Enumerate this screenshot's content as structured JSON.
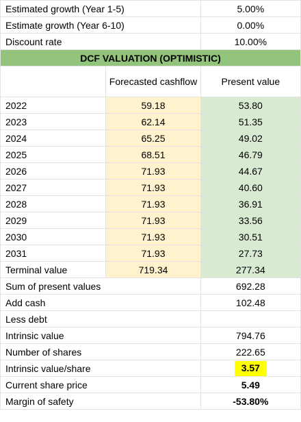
{
  "assumptions": [
    {
      "label": "Estimated growth (Year 1-5)",
      "value": "5.00%"
    },
    {
      "label": "Estimate growth (Year 6-10)",
      "value": "0.00%"
    },
    {
      "label": "Discount rate",
      "value": "10.00%"
    }
  ],
  "banner": "DCF VALUATION (OPTIMISTIC)",
  "headers": {
    "forecasted": "Forecasted cashflow",
    "present_value": "Present value"
  },
  "rows": [
    {
      "year": "2022",
      "cashflow": "59.18",
      "pv": "53.80"
    },
    {
      "year": "2023",
      "cashflow": "62.14",
      "pv": "51.35"
    },
    {
      "year": "2024",
      "cashflow": "65.25",
      "pv": "49.02"
    },
    {
      "year": "2025",
      "cashflow": "68.51",
      "pv": "46.79"
    },
    {
      "year": "2026",
      "cashflow": "71.93",
      "pv": "44.67"
    },
    {
      "year": "2027",
      "cashflow": "71.93",
      "pv": "40.60"
    },
    {
      "year": "2028",
      "cashflow": "71.93",
      "pv": "36.91"
    },
    {
      "year": "2029",
      "cashflow": "71.93",
      "pv": "33.56"
    },
    {
      "year": "2030",
      "cashflow": "71.93",
      "pv": "30.51"
    },
    {
      "year": "2031",
      "cashflow": "71.93",
      "pv": "27.73"
    }
  ],
  "terminal": {
    "label": "Terminal value",
    "cashflow": "719.34",
    "pv": "277.34"
  },
  "summary": [
    {
      "label": "Sum of present values",
      "value": "692.28"
    },
    {
      "label": "Add cash",
      "value": "102.48"
    },
    {
      "label": "Less debt",
      "value": ""
    },
    {
      "label": "Intrinsic value",
      "value": "794.76"
    },
    {
      "label": "Number of shares",
      "value": "222.65"
    }
  ],
  "results": {
    "ivps_label": "Intrinsic value/share",
    "ivps_value": "3.57",
    "price_label": "Current share price",
    "price_value": "5.49",
    "mos_label": "Margin of safety",
    "mos_value": "-53.80%"
  },
  "colors": {
    "banner": "#93c47d",
    "forecast_fill": "#fff2cc",
    "pv_fill": "#d9ead3",
    "highlight": "#ffff00"
  }
}
